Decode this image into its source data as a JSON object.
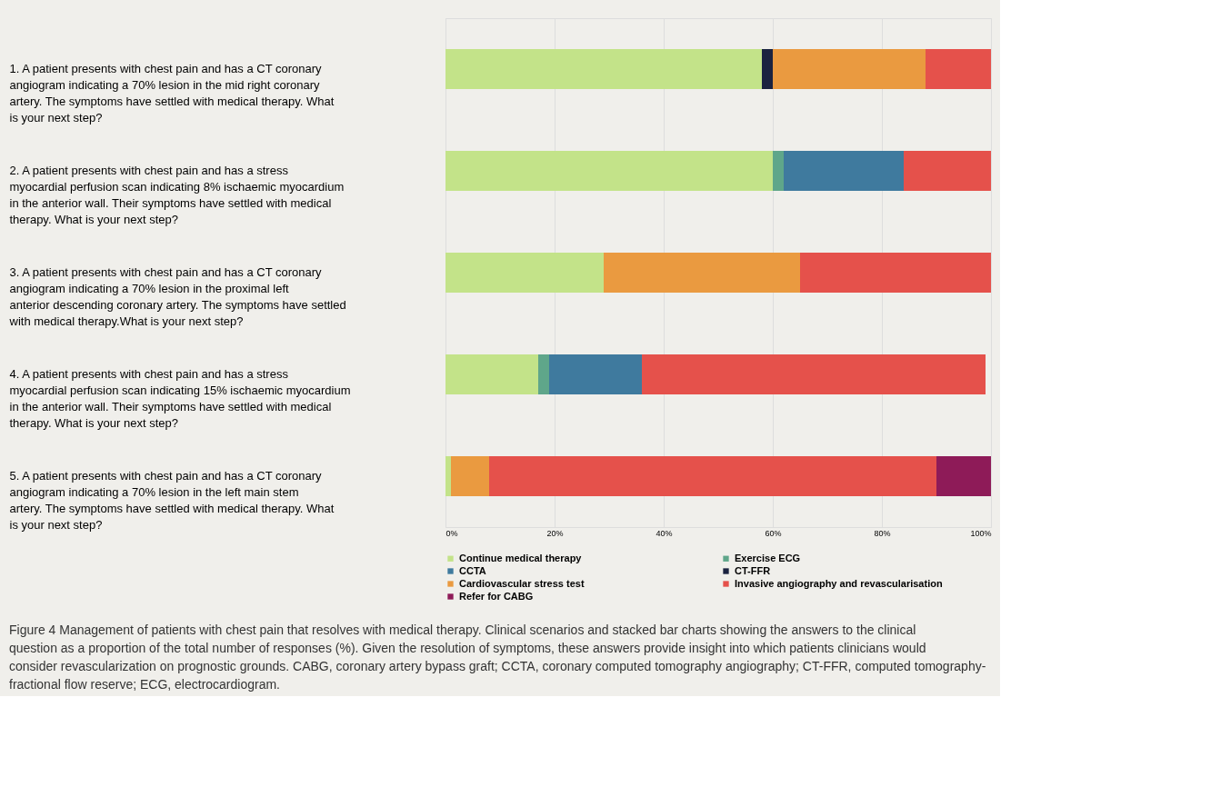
{
  "chart_data": {
    "type": "bar",
    "orientation": "horizontal",
    "stacked": true,
    "categories": [
      "1. A patient presents with chest pain and has a CT coronary angiogram indicating a 70% lesion in the mid right coronary artery. The symptoms have settled with medical therapy. What is your next step?",
      "2. A patient presents with chest pain and has a stress myocardial perfusion scan indicating 8% ischaemic myocardium in the anterior wall. Their symptoms have settled with medical therapy. What is your next step?",
      "3. A patient presents with chest pain and has a CT coronary angiogram indicating a 70% lesion in the proximal left anterior descending coronary artery. The symptoms have settled with medical therapy.What is your next step?",
      "4. A patient presents with chest pain and has a stress myocardial perfusion scan indicating 15% ischaemic myocardium in the anterior wall. Their symptoms have settled with medical therapy. What is your next step?",
      "5. A patient presents with chest pain and has a CT coronary angiogram indicating a 70% lesion in the left main stem artery. The symptoms have settled with medical therapy. What is your next step?"
    ],
    "series": [
      {
        "name": "Continue medical therapy",
        "color": "#c3e389",
        "values": [
          58,
          60,
          29,
          17,
          1
        ]
      },
      {
        "name": "Exercise ECG",
        "color": "#5fa68a",
        "values": [
          null,
          2,
          null,
          2,
          null
        ]
      },
      {
        "name": "CCTA",
        "color": "#3f7a9e",
        "values": [
          null,
          22,
          null,
          17,
          null
        ]
      },
      {
        "name": "CT-FFR",
        "color": "#1b2340",
        "values": [
          2,
          null,
          null,
          null,
          null
        ]
      },
      {
        "name": "Cardiovascular stress test",
        "color": "#ea9a40",
        "values": [
          28,
          null,
          36,
          null,
          7
        ]
      },
      {
        "name": "Invasive angiography and revascularisation",
        "color": "#e5514b",
        "values": [
          12,
          16,
          35,
          63,
          82
        ]
      },
      {
        "name": "Refer for CABG",
        "color": "#8e1b58",
        "values": [
          null,
          null,
          null,
          null,
          10
        ]
      }
    ],
    "xlim": [
      0,
      100
    ],
    "xticks": [
      {
        "value": 0,
        "label": "0%"
      },
      {
        "value": 20,
        "label": "20%"
      },
      {
        "value": 40,
        "label": "40%"
      },
      {
        "value": 60,
        "label": "60%"
      },
      {
        "value": 80,
        "label": "80%"
      },
      {
        "value": 100,
        "label": "100%"
      }
    ],
    "grid": "x",
    "legend": "bottom",
    "annotations": [
      "Figure 4 Management of patients with chest pain that resolves with medical therapy. Clinical scenarios and stacked bar charts showing the answers to the clinical question as a proportion of the total number of responses (%). Given the resolution of symptoms, these answers provide insight into which patients clinicians would consider revascularization on prognostic grounds. CABG, coronary artery bypass graft; CCTA, coronary computed tomography angiography; CT-FFR, computed tomography-fractional flow reserve; ECG, electrocardiogram."
    ]
  }
}
